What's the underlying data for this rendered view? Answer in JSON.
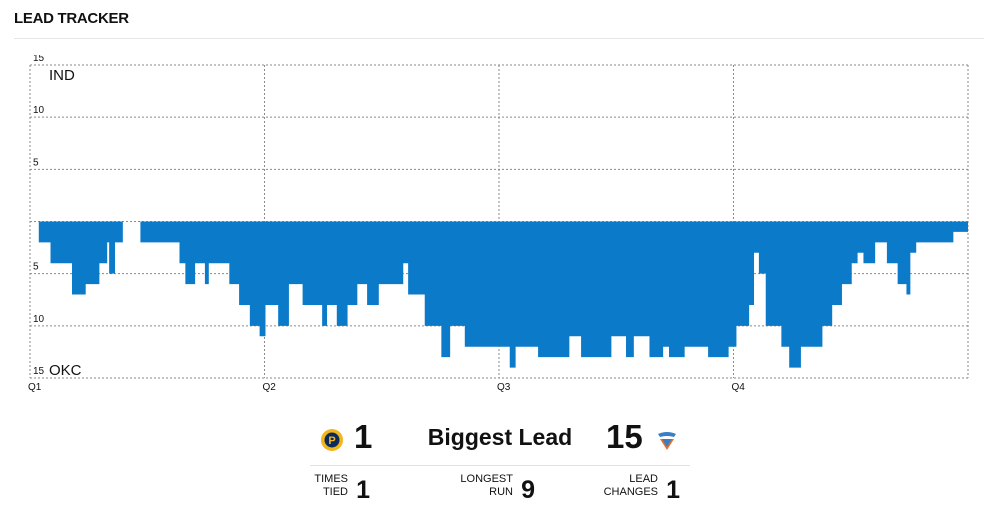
{
  "header": {
    "title": "LEAD TRACKER"
  },
  "chart_data": {
    "type": "area",
    "title": "",
    "xlabel": "",
    "ylabel": "",
    "x_ticks": [
      "Q1",
      "Q2",
      "Q3",
      "Q4"
    ],
    "x_range": [
      0,
      48
    ],
    "y_ticks": [
      15,
      10,
      5,
      0,
      -5,
      -10,
      -15
    ],
    "y_tick_labels": [
      "15",
      "10",
      "5",
      "",
      "5",
      "10",
      "15"
    ],
    "y_range": [
      -15,
      15
    ],
    "top_team_label": "IND",
    "bottom_team_label": "OKC",
    "note": "positive = IND lead, negative = OKC lead; x = game minutes elapsed",
    "color": "#0a7ac9",
    "grid": true,
    "points": [
      [
        0.0,
        0
      ],
      [
        0.45,
        -2
      ],
      [
        1.05,
        -4
      ],
      [
        2.15,
        -7
      ],
      [
        2.85,
        -6
      ],
      [
        3.55,
        -4
      ],
      [
        3.95,
        -2
      ],
      [
        4.05,
        -5
      ],
      [
        4.35,
        -2
      ],
      [
        4.75,
        0
      ],
      [
        5.5,
        0
      ],
      [
        5.65,
        -2
      ],
      [
        6.1,
        -2
      ],
      [
        7.1,
        -2
      ],
      [
        7.65,
        -4
      ],
      [
        7.95,
        -6
      ],
      [
        8.45,
        -4
      ],
      [
        8.95,
        -6
      ],
      [
        9.15,
        -4
      ],
      [
        9.7,
        -4
      ],
      [
        10.2,
        -6
      ],
      [
        10.7,
        -8
      ],
      [
        11.25,
        -10
      ],
      [
        11.75,
        -11
      ],
      [
        12.05,
        -8
      ],
      [
        12.7,
        -10
      ],
      [
        13.25,
        -6
      ],
      [
        13.95,
        -8
      ],
      [
        14.95,
        -10
      ],
      [
        15.2,
        -8
      ],
      [
        15.7,
        -10
      ],
      [
        16.25,
        -8
      ],
      [
        16.75,
        -6
      ],
      [
        17.25,
        -8
      ],
      [
        17.85,
        -6
      ],
      [
        18.85,
        -6
      ],
      [
        19.1,
        -4
      ],
      [
        19.35,
        -7
      ],
      [
        20.2,
        -10
      ],
      [
        20.95,
        -10
      ],
      [
        21.05,
        -13
      ],
      [
        21.5,
        -10
      ],
      [
        21.8,
        -10
      ],
      [
        22.25,
        -12
      ],
      [
        23.0,
        -12
      ],
      [
        24.0,
        -12
      ],
      [
        24.55,
        -14
      ],
      [
        24.85,
        -12
      ],
      [
        25.25,
        -12
      ],
      [
        26.0,
        -13
      ],
      [
        27.15,
        -13
      ],
      [
        27.6,
        -11
      ],
      [
        28.2,
        -13
      ],
      [
        29.3,
        -13
      ],
      [
        29.75,
        -11
      ],
      [
        30.5,
        -13
      ],
      [
        30.9,
        -11
      ],
      [
        31.7,
        -13
      ],
      [
        32.4,
        -12
      ],
      [
        32.7,
        -13
      ],
      [
        33.5,
        -12
      ],
      [
        34.2,
        -12
      ],
      [
        34.7,
        -13
      ],
      [
        35.75,
        -12
      ],
      [
        36.15,
        -10
      ],
      [
        36.55,
        -10
      ],
      [
        36.8,
        -8
      ],
      [
        37.05,
        -3
      ],
      [
        37.3,
        -5
      ],
      [
        37.65,
        -10
      ],
      [
        38.45,
        -12
      ],
      [
        38.85,
        -14
      ],
      [
        39.45,
        -12
      ],
      [
        40.05,
        -12
      ],
      [
        40.55,
        -10
      ],
      [
        41.05,
        -8
      ],
      [
        41.55,
        -6
      ],
      [
        42.05,
        -4
      ],
      [
        42.35,
        -3
      ],
      [
        42.65,
        -4
      ],
      [
        43.25,
        -2
      ],
      [
        43.85,
        -4
      ],
      [
        44.4,
        -6
      ],
      [
        44.85,
        -7
      ],
      [
        45.05,
        -3
      ],
      [
        45.35,
        -2
      ],
      [
        46.05,
        -2
      ],
      [
        46.85,
        -2
      ],
      [
        47.25,
        -1
      ],
      [
        48.0,
        -1
      ]
    ]
  },
  "summary": {
    "left_team_logo": "pacers-logo-icon",
    "right_team_logo": "thunder-logo-icon",
    "biggest_lead_label": "Biggest Lead",
    "left_biggest_lead": "1",
    "right_biggest_lead": "15",
    "times_tied_label": "TIMES\nTIED",
    "times_tied_value": "1",
    "longest_run_label": "LONGEST\nRUN",
    "longest_run_value": "9",
    "lead_changes_label": "LEAD\nCHANGES",
    "lead_changes_value": "1"
  },
  "colors": {
    "area": "#0a7ac9",
    "grid": "#8a8a8a",
    "pacers_gold": "#f2b51c",
    "pacers_navy": "#0b2a5c",
    "thunder_blue": "#3a7fc4",
    "thunder_orange": "#ef6b2d"
  }
}
